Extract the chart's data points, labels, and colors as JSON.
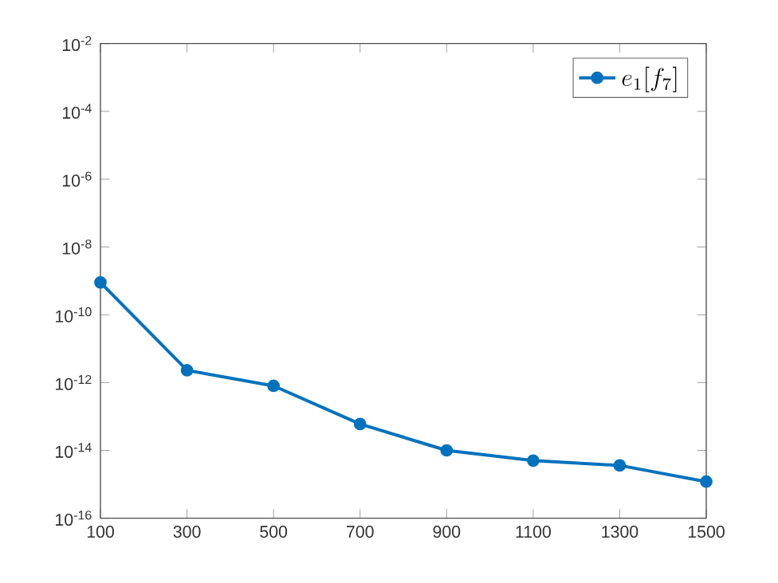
{
  "chart_data": {
    "type": "line",
    "x": [
      100,
      300,
      500,
      700,
      900,
      1100,
      1300,
      1500
    ],
    "series": [
      {
        "name": "e_1[f_7]",
        "color": "#0072bd",
        "values": [
          9e-10,
          2.3e-12,
          8e-13,
          6e-14,
          1e-14,
          5e-15,
          3.6e-15,
          1.2e-15
        ]
      }
    ],
    "log": "y",
    "xlim": [
      100,
      1500
    ],
    "ylim": [
      1e-16,
      0.01
    ],
    "xticks": [
      100,
      300,
      500,
      700,
      900,
      1100,
      1300,
      1500
    ],
    "yticks": [
      {
        "value": 1e-16,
        "label": "10$^{-16}$"
      },
      {
        "value": 1e-14,
        "label": "10$^{-14}$"
      },
      {
        "value": 1e-12,
        "label": "10$^{-12}$"
      },
      {
        "value": 1e-10,
        "label": "10$^{-10}$"
      },
      {
        "value": 1e-08,
        "label": "10$^{-8}$"
      },
      {
        "value": 1e-06,
        "label": "10$^{-6}$"
      },
      {
        "value": 0.0001,
        "label": "10$^{-4}$"
      },
      {
        "value": 0.01,
        "label": "10$^{-2}$"
      }
    ],
    "legend": "top right",
    "marker": "circle",
    "line_style": "solid",
    "grid": false
  }
}
